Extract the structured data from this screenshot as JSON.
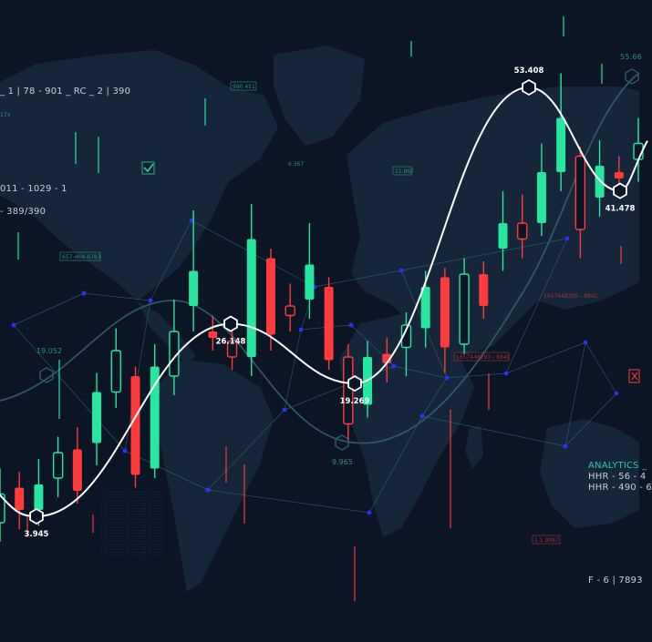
{
  "overlay": {
    "top_left_code": "_ 1 | 78 - 901 _ RC _ 2 | 390",
    "left_code_a": "011 - 1029 - 1",
    "left_code_b": "- 389/390",
    "analytics_title": "ANALYTICS _",
    "analytics_line1": "HHR - 56 - 4",
    "analytics_line2": "HHR - 490 - 6",
    "bottom_right_code": "F - 6 | 7893",
    "top_right_tag": "55.66"
  },
  "map_tags": [
    {
      "text": "990.451"
    },
    {
      "text": "174"
    },
    {
      "text": "6.367"
    },
    {
      "text": "11.867"
    },
    {
      "text": "657-468-6783"
    },
    {
      "text": "1657448395 - 984C"
    },
    {
      "text": "1657448293 - 984C"
    },
    {
      "text": "1.1.9987"
    },
    {
      "text": "19.052"
    },
    {
      "text": "9.965"
    }
  ],
  "colors": {
    "background": "#0b1525",
    "map": "#17283c",
    "bull": "#27e6a0",
    "bear": "#ff3b3b",
    "trend_line": "#ffffff",
    "network_line": "#2f6a74",
    "network_node": "#2434ff"
  },
  "chart_data": {
    "type": "line",
    "title": "",
    "xlabel": "",
    "ylabel": "",
    "trend_points": [
      {
        "label": "3.945",
        "value": 3.945
      },
      {
        "label": "26.148",
        "value": 26.148
      },
      {
        "label": "19.269",
        "value": 19.269
      },
      {
        "label": "53.408",
        "value": 53.408
      },
      {
        "label": "41.478",
        "value": 41.478
      }
    ],
    "candles": [
      {
        "dir": "bull",
        "open": 36,
        "close": 45,
        "high": 53,
        "low": 30
      },
      {
        "dir": "bear",
        "open": 47,
        "close": 40,
        "high": 52,
        "low": 34
      },
      {
        "dir": "bull",
        "open": 40,
        "close": 48,
        "high": 56,
        "low": 35
      },
      {
        "dir": "bull",
        "open": 50,
        "close": 58,
        "high": 63,
        "low": 44
      },
      {
        "dir": "bear",
        "open": 59,
        "close": 46,
        "high": 66,
        "low": 42
      },
      {
        "dir": "bull",
        "open": 61,
        "close": 77,
        "high": 83,
        "low": 54
      },
      {
        "dir": "bull",
        "open": 77,
        "close": 90,
        "high": 97,
        "low": 72
      },
      {
        "dir": "bear",
        "open": 82,
        "close": 51,
        "high": 85,
        "low": 47
      },
      {
        "dir": "bull",
        "open": 53,
        "close": 85,
        "high": 92,
        "low": 50
      },
      {
        "dir": "bull",
        "open": 82,
        "close": 96,
        "high": 106,
        "low": 76
      },
      {
        "dir": "bull",
        "open": 104,
        "close": 115,
        "high": 134,
        "low": 96
      },
      {
        "dir": "bear",
        "open": 96,
        "close": 94,
        "high": 101,
        "low": 90
      },
      {
        "dir": "bear",
        "open": 93,
        "close": 88,
        "high": 97,
        "low": 84
      },
      {
        "dir": "bull",
        "open": 88,
        "close": 125,
        "high": 136,
        "low": 82
      },
      {
        "dir": "bear",
        "open": 119,
        "close": 95,
        "high": 122,
        "low": 90
      },
      {
        "dir": "bear",
        "open": 104,
        "close": 101,
        "high": 111,
        "low": 96
      },
      {
        "dir": "bull",
        "open": 106,
        "close": 117,
        "high": 130,
        "low": 100
      },
      {
        "dir": "bear",
        "open": 110,
        "close": 87,
        "high": 113,
        "low": 84
      },
      {
        "dir": "bear",
        "open": 88,
        "close": 67,
        "high": 92,
        "low": 62
      },
      {
        "dir": "bull",
        "open": 73,
        "close": 88,
        "high": 93,
        "low": 69
      },
      {
        "dir": "bear",
        "open": 89,
        "close": 86,
        "high": 94,
        "low": 80
      },
      {
        "dir": "bull",
        "open": 91,
        "close": 98,
        "high": 102,
        "low": 82
      },
      {
        "dir": "bull",
        "open": 97,
        "close": 110,
        "high": 115,
        "low": 91
      },
      {
        "dir": "bear",
        "open": 113,
        "close": 91,
        "high": 116,
        "low": 83
      },
      {
        "dir": "bull",
        "open": 92,
        "close": 114,
        "high": 119,
        "low": 89
      },
      {
        "dir": "bear",
        "open": 114,
        "close": 104,
        "high": 118,
        "low": 100
      },
      {
        "dir": "bull",
        "open": 122,
        "close": 130,
        "high": 140,
        "low": 115
      },
      {
        "dir": "bear",
        "open": 130,
        "close": 125,
        "high": 139,
        "low": 119
      },
      {
        "dir": "bull",
        "open": 130,
        "close": 146,
        "high": 155,
        "low": 126
      },
      {
        "dir": "bull",
        "open": 146,
        "close": 163,
        "high": 177,
        "low": 140
      },
      {
        "dir": "bear",
        "open": 151,
        "close": 128,
        "high": 154,
        "low": 119
      },
      {
        "dir": "bull",
        "open": 138,
        "close": 148,
        "high": 156,
        "low": 132
      },
      {
        "dir": "bear",
        "open": 146,
        "close": 144,
        "high": 151,
        "low": 138
      },
      {
        "dir": "bull",
        "open": 150,
        "close": 155,
        "high": 163,
        "low": 143
      }
    ]
  }
}
